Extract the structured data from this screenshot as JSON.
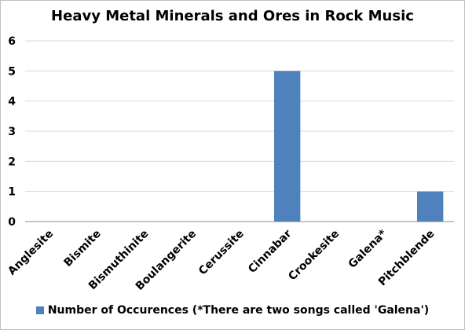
{
  "chart_data": {
    "type": "bar",
    "title": "Heavy Metal Minerals and Ores in Rock Music",
    "categories": [
      "Anglesite",
      "Bismite",
      "Bismuthinite",
      "Boulangerite",
      "Cerussite",
      "Cinnabar",
      "Crookesite",
      "Galena*",
      "Pitchblende"
    ],
    "series": [
      {
        "name": "Number of Occurences (*There are two songs called 'Galena')",
        "values": [
          0,
          0,
          0,
          0,
          0,
          5,
          0,
          0,
          1
        ],
        "color": "#4f81bd"
      }
    ],
    "ylim": [
      0,
      6
    ],
    "yticks": [
      "0",
      "1",
      "2",
      "3",
      "4",
      "5",
      "6"
    ],
    "grid": true,
    "legend_position": "bottom"
  }
}
